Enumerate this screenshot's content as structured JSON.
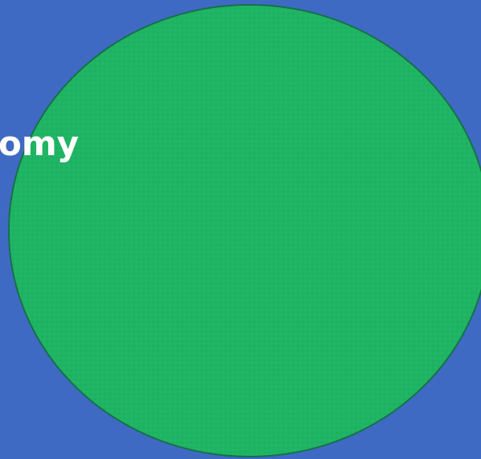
{
  "label": "omy"
}
